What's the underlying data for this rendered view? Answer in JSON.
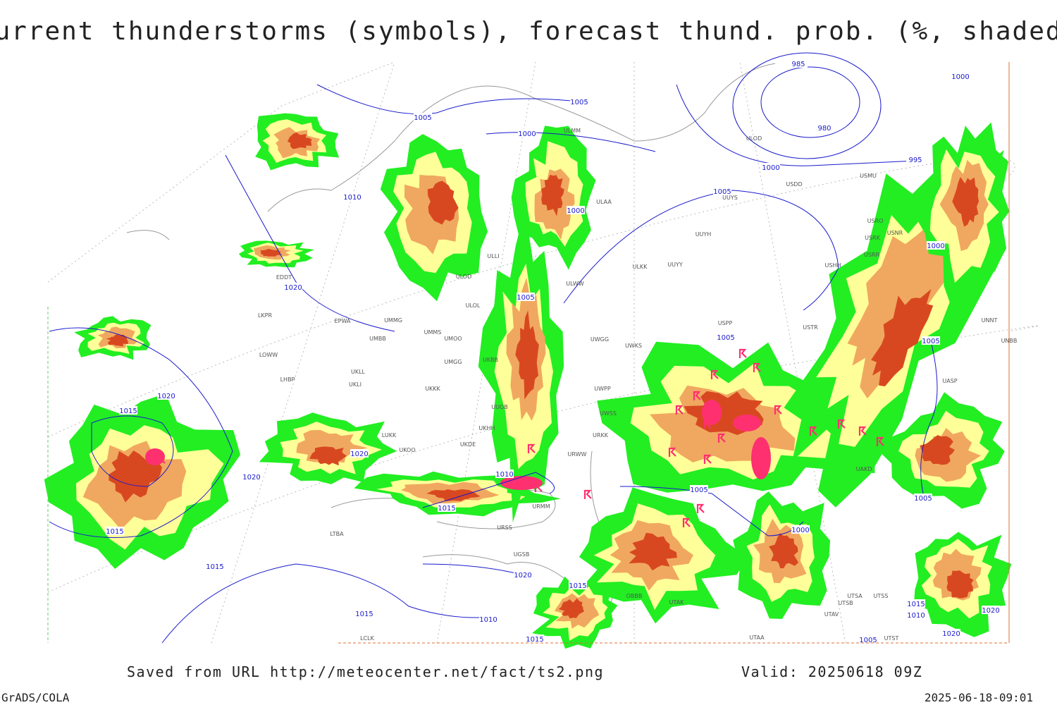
{
  "title": "Current thunderstorms (symbols), forecast thund. prob. (%, shaded)",
  "footer": {
    "source": "Saved from URL http://meteocenter.net/fact/ts2.png",
    "valid": "Valid: 20250618 09Z",
    "software": "GrADS/COLA",
    "timestamp": "2025-06-18-09:01"
  },
  "isobar_labels": [
    "1005",
    "1005",
    "1000",
    "985",
    "980",
    "1000",
    "995",
    "1000",
    "1010",
    "1000",
    "1005",
    "1000",
    "1020",
    "1005",
    "1005",
    "1005",
    "1020",
    "1015",
    "1020",
    "1020",
    "1010",
    "1015",
    "1005",
    "1005",
    "1015",
    "1015",
    "1000",
    "1020",
    "1015",
    "1015",
    "1010",
    "1015",
    "1005",
    "1015",
    "1010",
    "1020",
    "1020"
  ],
  "stations": [
    "ULMM",
    "ULOD",
    "USMU",
    "USDD",
    "ULAA",
    "UUYS",
    "USRO",
    "UUYH",
    "USRK",
    "USNR",
    "USRR",
    "ULLI",
    "UUYY",
    "ULKK",
    "USHH",
    "EDDT",
    "ULOD",
    "ULWW",
    "ULOL",
    "EPWA",
    "LKPR",
    "UMMG",
    "UMMS",
    "UMOO",
    "UMBB",
    "UWGG",
    "UWKS",
    "UNNT",
    "UNBB",
    "USTR",
    "USPP",
    "LOWW",
    "LHBP",
    "UKLL",
    "UKLI",
    "UMGG",
    "UKBB",
    "UKKK",
    "UWPP",
    "LUKK",
    "UKOO",
    "UKDE",
    "UKHH",
    "UUOB",
    "UWSS",
    "URWW",
    "URKK",
    "UAKD",
    "UASP",
    "URSS",
    "URMM",
    "UTAK",
    "UTAA",
    "UTSA",
    "UTSB",
    "UTAV",
    "UTSS",
    "UTST",
    "LTBA",
    "LCLK",
    "OBBB",
    "UGSB"
  ]
}
